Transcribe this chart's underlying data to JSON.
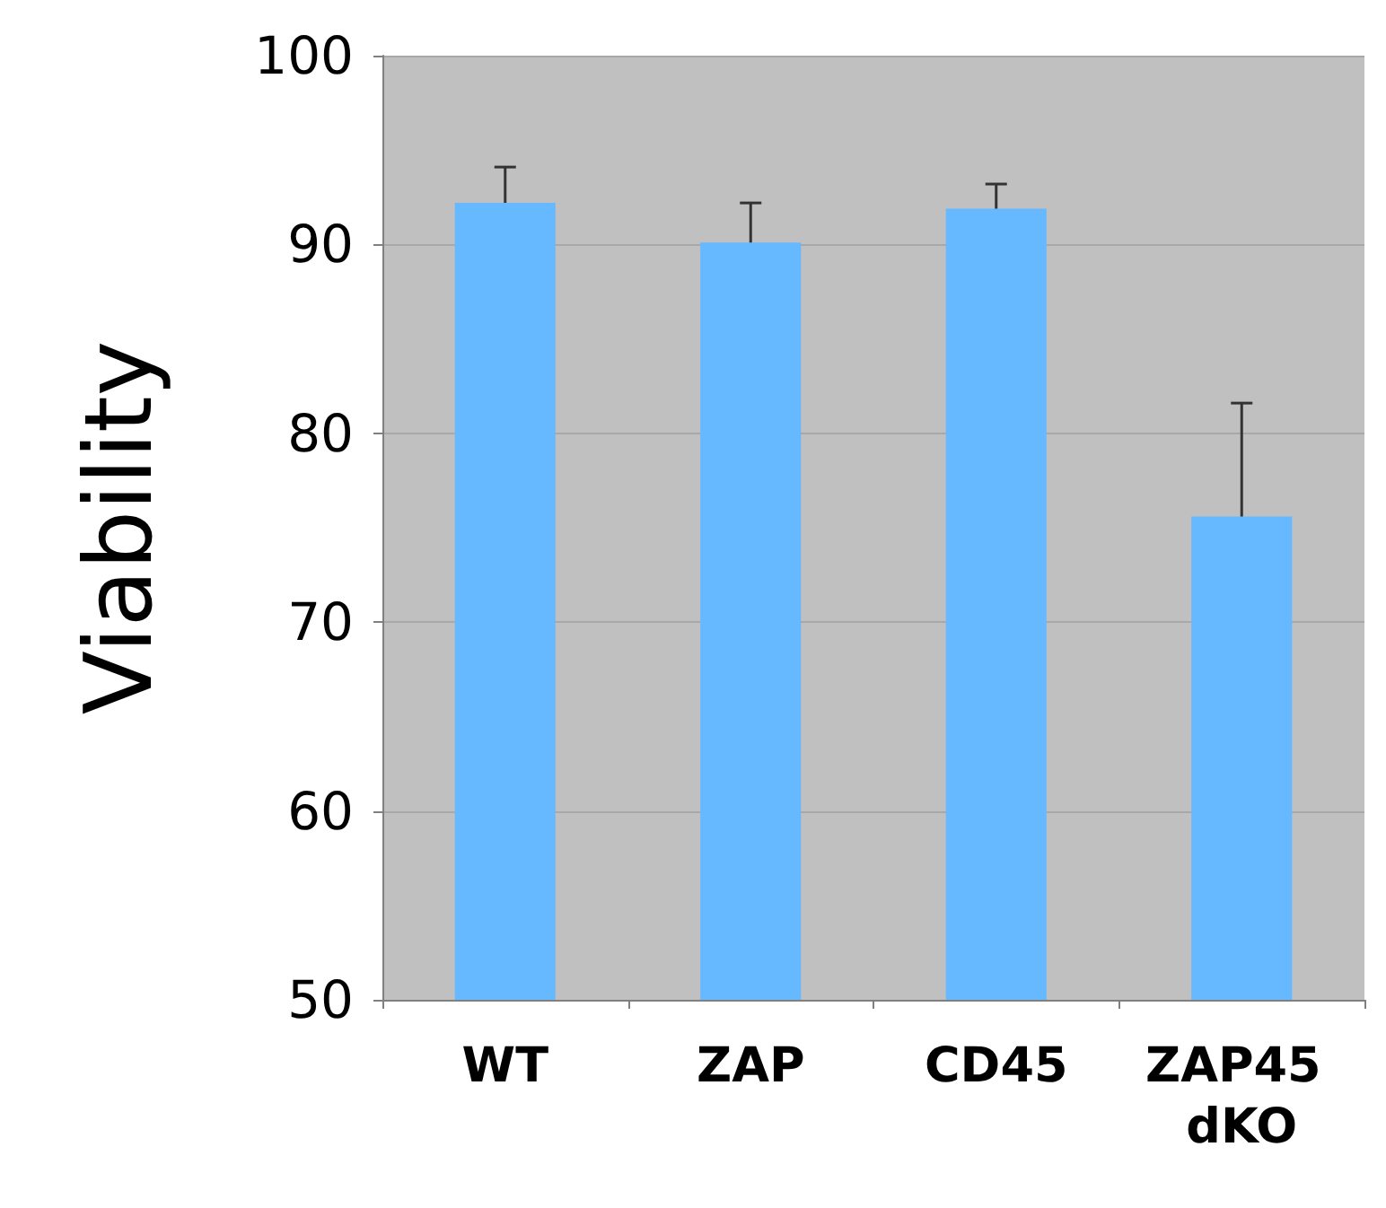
{
  "chart_data": {
    "type": "bar",
    "ylabel": "Viability",
    "categories": [
      "WT",
      "ZAP",
      "CD45",
      "ZAP45 dKO"
    ],
    "values": [
      92.2,
      90.1,
      91.9,
      75.6
    ],
    "errors": [
      1.9,
      2.1,
      1.3,
      6
    ],
    "color": "#66b8ff",
    "ylim": [
      50,
      100
    ],
    "yticks": [
      50,
      60,
      70,
      80,
      90,
      100
    ],
    "grid": "y"
  }
}
